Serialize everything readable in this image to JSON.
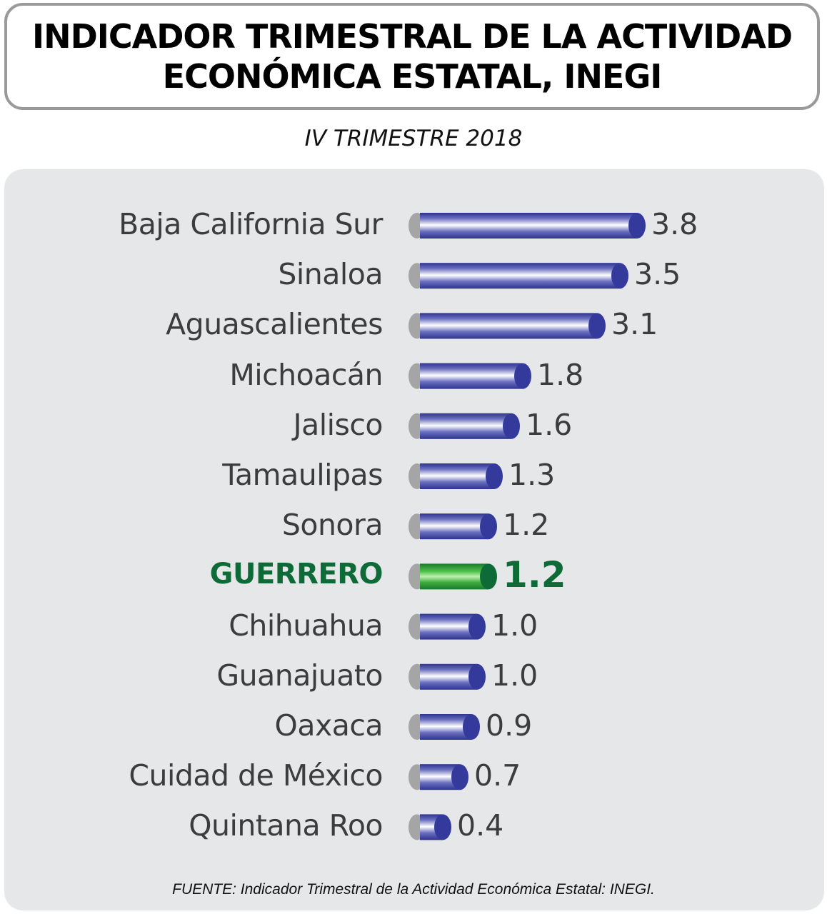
{
  "chart_data": {
    "type": "bar",
    "orientation": "horizontal",
    "title": [
      "INDICADOR TRIMESTRAL DE LA ACTIVIDAD",
      "ECONÓMICA ESTATAL, INEGI"
    ],
    "subtitle": "IV TRIMESTRE 2018",
    "categories": [
      "Baja California Sur",
      "Sinaloa",
      "Aguascalientes",
      "Michoacán",
      "Jalisco",
      "Tamaulipas",
      "Sonora",
      "GUERRERO",
      "Chihuahua",
      "Guanajuato",
      "Oaxaca",
      "Cuidad de México",
      "Quintana Roo"
    ],
    "values": [
      3.8,
      3.5,
      3.1,
      1.8,
      1.6,
      1.3,
      1.2,
      1.2,
      1.0,
      1.0,
      0.9,
      0.7,
      0.4
    ],
    "value_labels": [
      "3.8",
      "3.5",
      "3.1",
      "1.8",
      "1.6",
      "1.3",
      "1.2",
      "1.2",
      "1.0",
      "1.0",
      "0.9",
      "0.7",
      "0.4"
    ],
    "highlight": "GUERRERO",
    "colors": {
      "bar": "#343a9c",
      "highlight": "#2a9a3c",
      "highlight_text": "#0e6b38",
      "cap": "#a5a5a5"
    },
    "source": "FUENTE: Indicador Trimestral de la Actividad Económica Estatal: INEGI."
  }
}
